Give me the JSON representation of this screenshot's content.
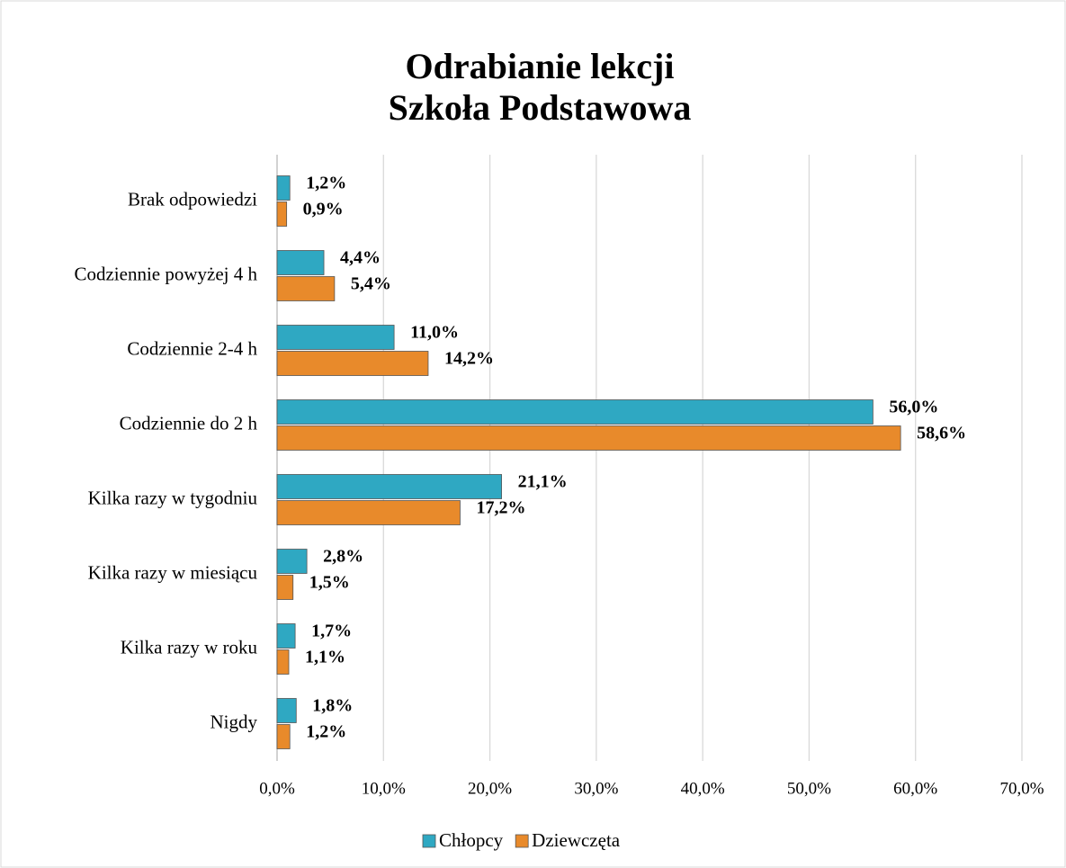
{
  "chart_data": {
    "type": "bar",
    "orientation": "horizontal",
    "title": [
      "Odrabianie lekcji",
      "Szkoła Podstawowa"
    ],
    "categories": [
      "Brak odpowiedzi",
      "Codziennie powyżej 4 h",
      "Codziennie 2-4 h",
      "Codziennie do 2 h",
      "Kilka razy w tygodniu",
      "Kilka razy w miesiącu",
      "Kilka razy w roku",
      "Nigdy"
    ],
    "series": [
      {
        "name": "Chłopcy",
        "color": "#2fa8c2",
        "values": [
          1.2,
          4.4,
          11.0,
          56.0,
          21.1,
          2.8,
          1.7,
          1.8
        ],
        "value_labels": [
          "1,2%",
          "4,4%",
          "11,0%",
          "56,0%",
          "21,1%",
          "2,8%",
          "1,7%",
          "1,8%"
        ]
      },
      {
        "name": "Dziewczęta",
        "color": "#e88a2b",
        "values": [
          0.9,
          5.4,
          14.2,
          58.6,
          17.2,
          1.5,
          1.1,
          1.2
        ],
        "value_labels": [
          "0,9%",
          "5,4%",
          "14,2%",
          "58,6%",
          "17,2%",
          "1,5%",
          "1,1%",
          "1,2%"
        ]
      }
    ],
    "xlim": [
      0,
      70
    ],
    "xticks": [
      {
        "value": 0,
        "label": "0,0%"
      },
      {
        "value": 10,
        "label": "10,0%"
      },
      {
        "value": 20,
        "label": "20,0%"
      },
      {
        "value": 30,
        "label": "30,0%"
      },
      {
        "value": 40,
        "label": "40,0%"
      },
      {
        "value": 50,
        "label": "50,0%"
      },
      {
        "value": 60,
        "label": "60,0%"
      },
      {
        "value": 70,
        "label": "70,0%"
      }
    ],
    "grid": true,
    "legend": "bottom"
  }
}
